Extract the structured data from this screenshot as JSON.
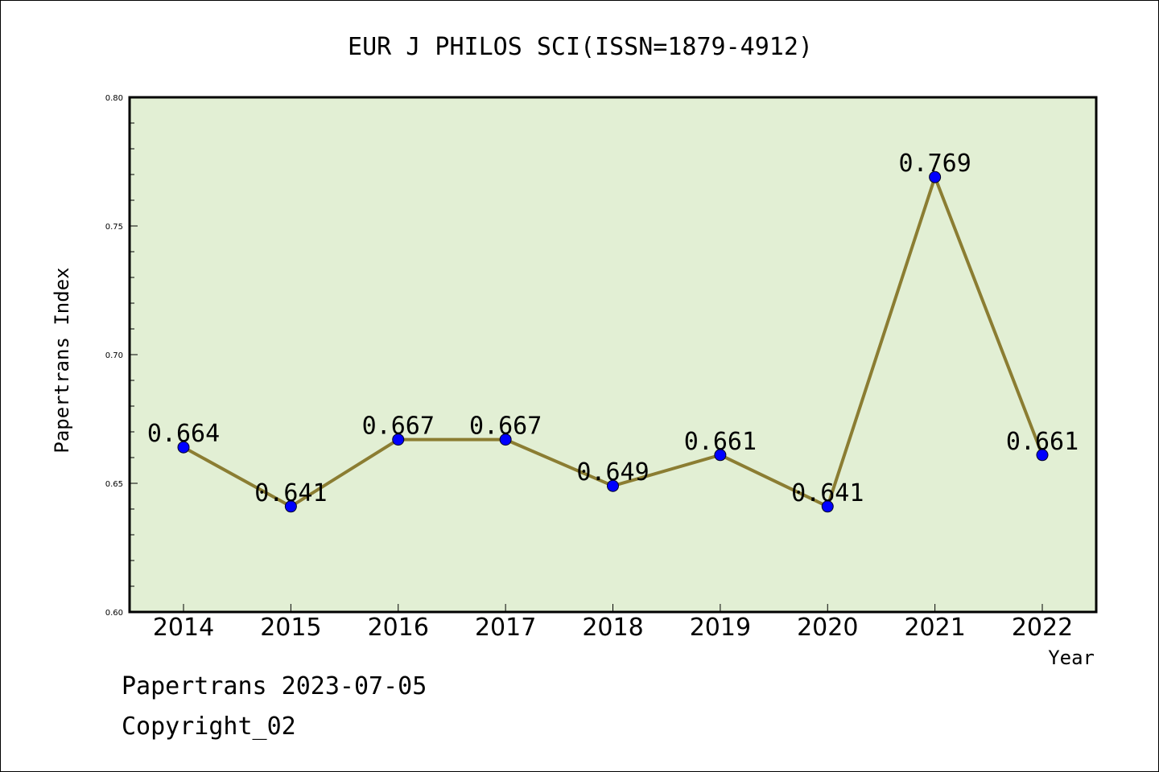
{
  "chart_data": {
    "type": "line",
    "title": "EUR J PHILOS SCI(ISSN=1879-4912)",
    "xlabel": "Year",
    "ylabel": "Papertrans Index",
    "categories": [
      "2014",
      "2015",
      "2016",
      "2017",
      "2018",
      "2019",
      "2020",
      "2021",
      "2022"
    ],
    "series": [
      {
        "values": [
          0.664,
          0.641,
          0.667,
          0.667,
          0.649,
          0.661,
          0.641,
          0.769,
          0.661
        ]
      }
    ],
    "data_labels": [
      "0.664",
      "0.641",
      "0.667",
      "0.667",
      "0.649",
      "0.661",
      "0.641",
      "0.769",
      "0.661"
    ],
    "ylim": [
      0.6,
      0.8
    ],
    "yticks": [
      0.6,
      0.65,
      0.7,
      0.75,
      0.8
    ],
    "ytick_labels": [
      "0.60",
      "0.65",
      "0.70",
      "0.75",
      "0.80"
    ],
    "grid": false,
    "colors": {
      "plot_background": "#e2efd4",
      "line": "#8b7d32",
      "marker": "#0000ff"
    }
  },
  "footer": {
    "source": "Papertrans 2023-07-05",
    "copyright": "Copyright_02"
  }
}
